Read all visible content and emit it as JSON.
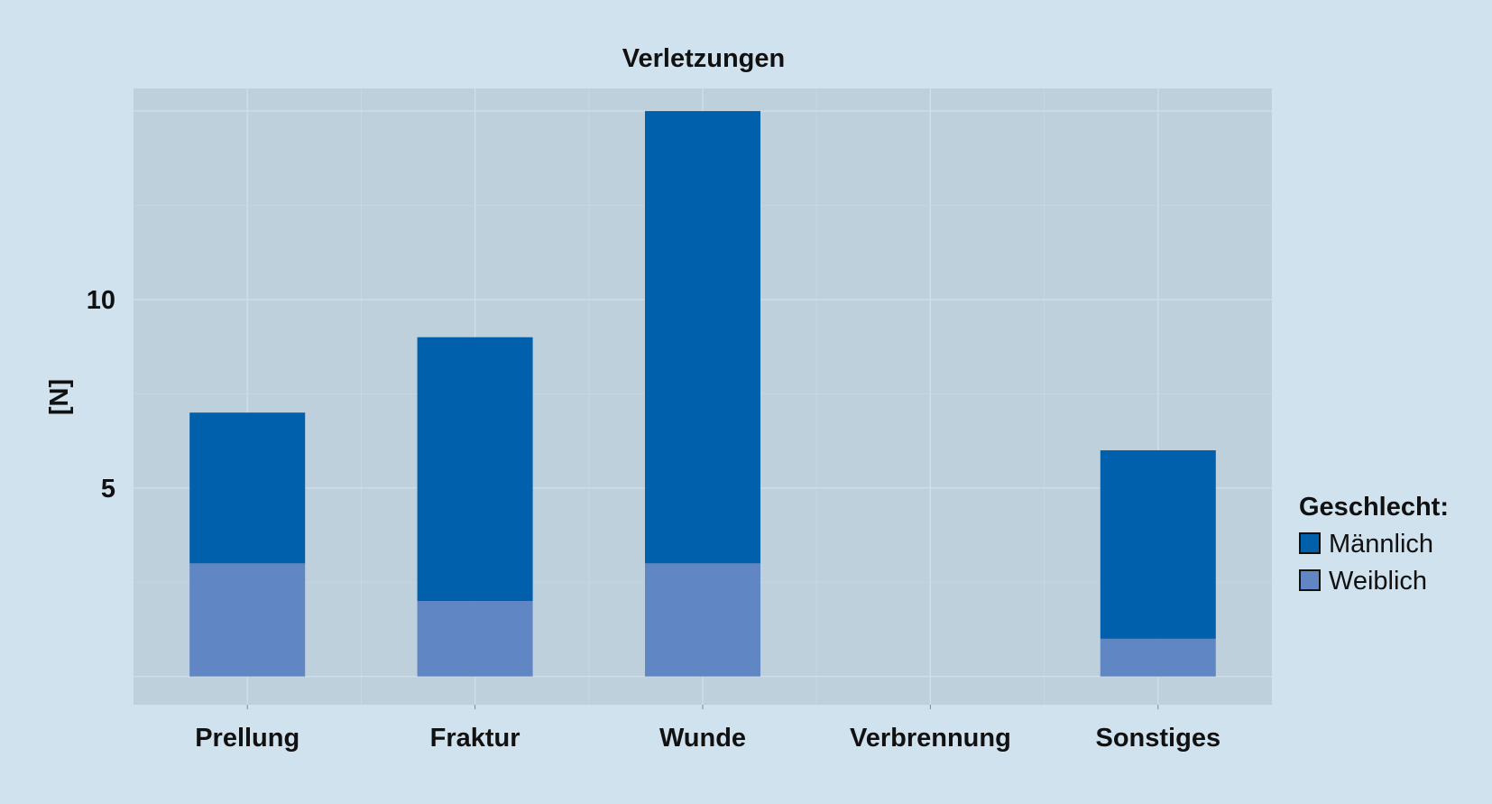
{
  "chart_data": {
    "type": "bar",
    "stacked": true,
    "title": "Verletzungen",
    "xlabel": "",
    "ylabel": "[N]",
    "categories": [
      "Prellung",
      "Fraktur",
      "Wunde",
      "Verbrennung",
      "Sonstiges"
    ],
    "series": [
      {
        "name": "Weiblich",
        "values": [
          3,
          2,
          3,
          0,
          1
        ],
        "color": "#6086c4"
      },
      {
        "name": "Männlich",
        "values": [
          4,
          7,
          12,
          0,
          5
        ],
        "color": "#0060ac"
      }
    ],
    "ylim": [
      -0.75,
      15.6
    ],
    "yticks": [
      5,
      10
    ],
    "ytick_labels": [
      "5",
      "10"
    ],
    "grid": true,
    "legend": {
      "title": "Geschlecht:",
      "placement": "right",
      "entries": [
        "Männlich",
        "Weiblich"
      ]
    },
    "colors": {
      "page_background": "#d0e2ee",
      "plot_background": "#bfd0dd",
      "grid_major": "#d2e0ea",
      "grid_minor": "#c8d7e3"
    }
  }
}
